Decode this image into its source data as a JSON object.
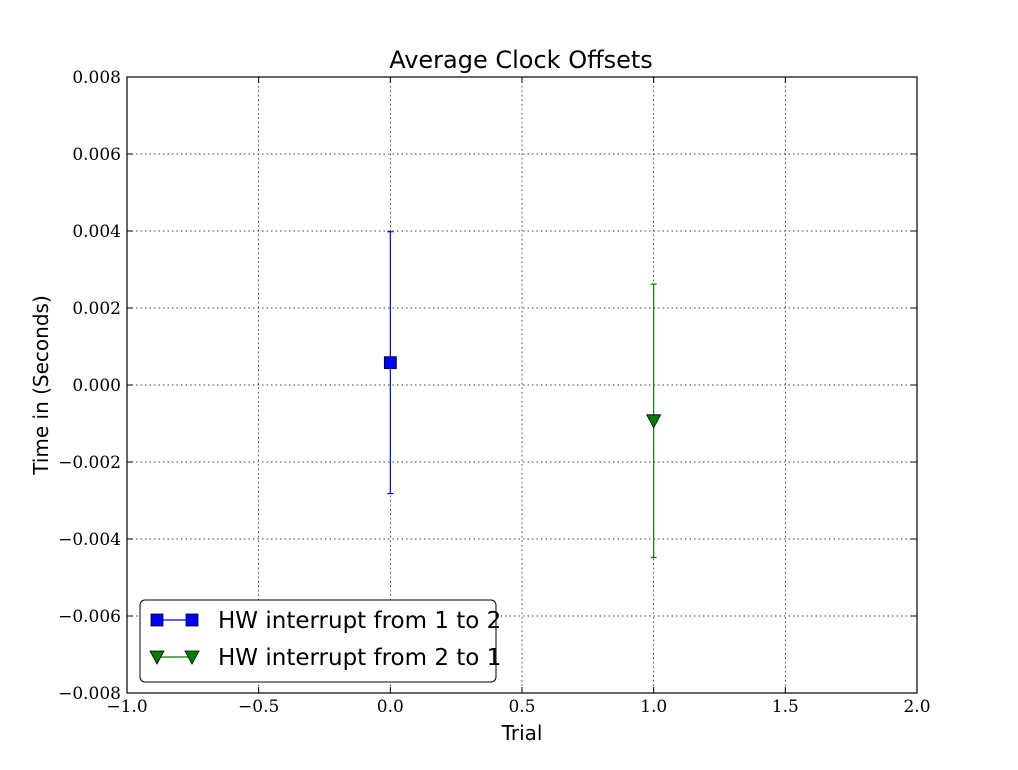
{
  "chart_data": {
    "type": "scatter",
    "title": "Average Clock Offsets",
    "xlabel": "Trial",
    "ylabel": "Time in (Seconds)",
    "xlim": [
      -1.0,
      2.0
    ],
    "ylim": [
      -0.008,
      0.008
    ],
    "x_ticks": [
      "−1.0",
      "−0.5",
      "0.0",
      "0.5",
      "1.0",
      "1.5",
      "2.0"
    ],
    "x_tick_values": [
      -1.0,
      -0.5,
      0.0,
      0.5,
      1.0,
      1.5,
      2.0
    ],
    "y_ticks": [
      "−0.008",
      "−0.006",
      "−0.004",
      "−0.002",
      "0.000",
      "0.002",
      "0.004",
      "0.006",
      "0.008"
    ],
    "y_tick_values": [
      -0.008,
      -0.006,
      -0.004,
      -0.002,
      0.0,
      0.002,
      0.004,
      0.006,
      0.008
    ],
    "grid": true,
    "legend_position": "lower-left",
    "series": [
      {
        "name": "HW interrupt from 1 to 2",
        "marker": "square",
        "color": "#0000ff",
        "x": [
          0.0
        ],
        "y": [
          0.00058
        ],
        "error": [
          0.0034
        ]
      },
      {
        "name": "HW interrupt from 2 to 1",
        "marker": "triangle-down",
        "color": "#007f00",
        "x": [
          1.0
        ],
        "y": [
          -0.00093
        ],
        "error": [
          0.00355
        ]
      }
    ]
  }
}
